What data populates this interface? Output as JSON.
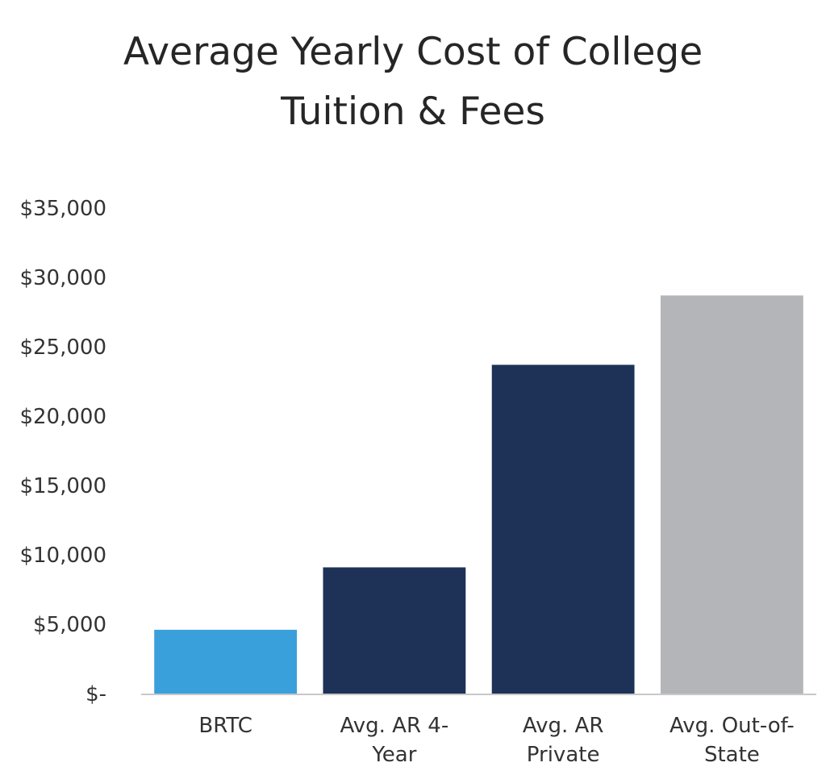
{
  "chart_data": {
    "type": "bar",
    "title_lines": [
      "Average Yearly Cost of College",
      "Tuition & Fees"
    ],
    "categories": [
      [
        "BRTC"
      ],
      [
        "Avg. AR 4-",
        "Year"
      ],
      [
        "Avg. AR",
        "Private"
      ],
      [
        "Avg. Out-of-",
        "State"
      ]
    ],
    "values": [
      4600,
      9100,
      23700,
      28700
    ],
    "bar_colors": [
      "#3aa0dc",
      "#1e3257",
      "#1e3257",
      "#b3b5b8"
    ],
    "ylim": [
      0,
      35000
    ],
    "yticks": [
      {
        "value": 0,
        "label": "$-"
      },
      {
        "value": 5000,
        "label": "$5,000"
      },
      {
        "value": 10000,
        "label": "$10,000"
      },
      {
        "value": 15000,
        "label": "$15,000"
      },
      {
        "value": 20000,
        "label": "$20,000"
      },
      {
        "value": 25000,
        "label": "$25,000"
      },
      {
        "value": 30000,
        "label": "$30,000"
      },
      {
        "value": 35000,
        "label": "$35,000"
      }
    ],
    "grid": false,
    "axis_color": "#c8c8c8"
  }
}
